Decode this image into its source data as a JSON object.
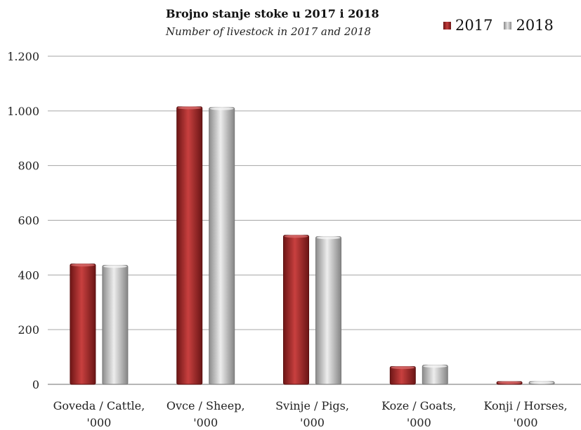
{
  "chart_data": {
    "type": "bar",
    "title": "Brojno stanje stoke u 2017 i 2018",
    "subtitle": "Number of livestock in 2017 and 2018",
    "categories": [
      [
        "Goveda / Cattle,",
        "'000"
      ],
      [
        "Ovce / Sheep,",
        "'000"
      ],
      [
        "Svinje / Pigs,",
        "'000"
      ],
      [
        "Koze / Goats,",
        "'000"
      ],
      [
        "Konji / Horses,",
        "'000"
      ]
    ],
    "series": [
      {
        "name": "2017",
        "values": [
          440,
          1015,
          545,
          65,
          10
        ],
        "color": "#a02b2b"
      },
      {
        "name": "2018",
        "values": [
          435,
          1012,
          540,
          70,
          10
        ],
        "color": "#bfbfbf"
      }
    ],
    "ylim": [
      0,
      1200
    ],
    "yticks": [
      0,
      200,
      400,
      600,
      800,
      1000,
      1200
    ],
    "ytick_labels": [
      "0",
      "200",
      "400",
      "600",
      "800",
      "1.000",
      "1.200"
    ],
    "grid": true,
    "legend_position": "top-right"
  }
}
